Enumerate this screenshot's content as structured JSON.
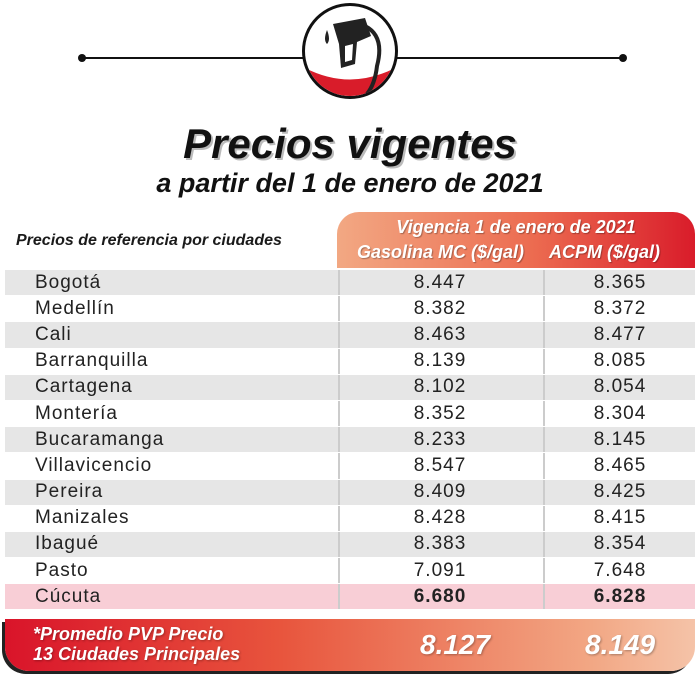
{
  "header": {
    "icon": "fuel-pump-nozzle-icon",
    "title": "Precios vigentes",
    "subtitle": "a partir del 1 de enero de 2021"
  },
  "table": {
    "row_header": "Precios de referencia por ciudades",
    "period_header": "Vigencia 1 de enero de 2021",
    "columns": [
      "Gasolina MC ($/gal)",
      "ACPM ($/gal)"
    ],
    "rows": [
      {
        "city": "Bogotá",
        "gasolina": "8.447",
        "acpm": "8.365"
      },
      {
        "city": "Medellín",
        "gasolina": "8.382",
        "acpm": "8.372"
      },
      {
        "city": "Cali",
        "gasolina": "8.463",
        "acpm": "8.477"
      },
      {
        "city": "Barranquilla",
        "gasolina": "8.139",
        "acpm": "8.085"
      },
      {
        "city": "Cartagena",
        "gasolina": "8.102",
        "acpm": "8.054"
      },
      {
        "city": "Montería",
        "gasolina": "8.352",
        "acpm": "8.304"
      },
      {
        "city": "Bucaramanga",
        "gasolina": "8.233",
        "acpm": "8.145"
      },
      {
        "city": "Villavicencio",
        "gasolina": "8.547",
        "acpm": "8.465"
      },
      {
        "city": "Pereira",
        "gasolina": "8.409",
        "acpm": "8.425"
      },
      {
        "city": "Manizales",
        "gasolina": "8.428",
        "acpm": "8.415"
      },
      {
        "city": "Ibagué",
        "gasolina": "8.383",
        "acpm": "8.354"
      },
      {
        "city": "Pasto",
        "gasolina": "7.091",
        "acpm": "7.648"
      },
      {
        "city": "Cúcuta",
        "gasolina": "6.680",
        "acpm": "6.828"
      }
    ],
    "average": {
      "label_line1": "*Promedio PVP Precio",
      "label_line2": "13 Ciudades Principales",
      "gasolina": "8.127",
      "acpm": "8.149"
    }
  },
  "colors": {
    "accent_red": "#d91c2a",
    "accent_orange": "#ec6b50",
    "highlight_row": "#f8ced6",
    "stripe": "#e6e6e6"
  }
}
